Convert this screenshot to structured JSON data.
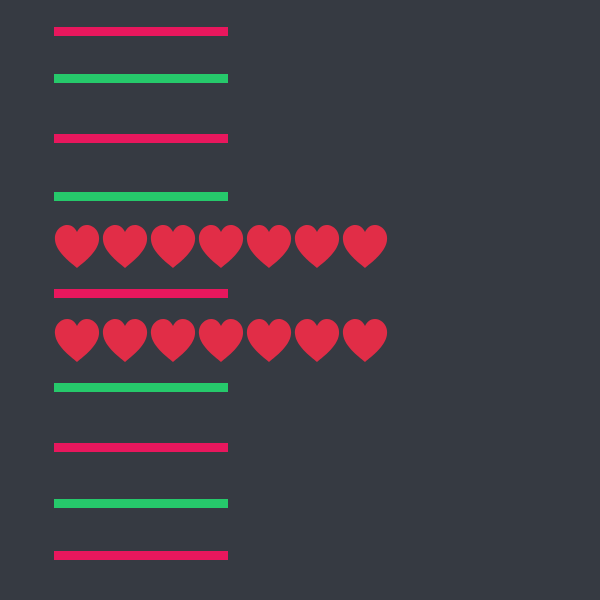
{
  "colors": {
    "background": "#363a42",
    "pink": "#e8175d",
    "green": "#26c96b",
    "heart": "#e12d47"
  },
  "rows": [
    {
      "type": "bar",
      "color": "pink"
    },
    {
      "type": "bar",
      "color": "green"
    },
    {
      "type": "bar",
      "color": "pink"
    },
    {
      "type": "bar",
      "color": "green"
    },
    {
      "type": "hearts",
      "count": 7,
      "icon": "heart-icon"
    },
    {
      "type": "bar",
      "color": "pink"
    },
    {
      "type": "hearts",
      "count": 7,
      "icon": "heart-icon"
    },
    {
      "type": "bar",
      "color": "green"
    },
    {
      "type": "bar",
      "color": "pink"
    },
    {
      "type": "bar",
      "color": "green"
    },
    {
      "type": "bar",
      "color": "pink"
    }
  ]
}
